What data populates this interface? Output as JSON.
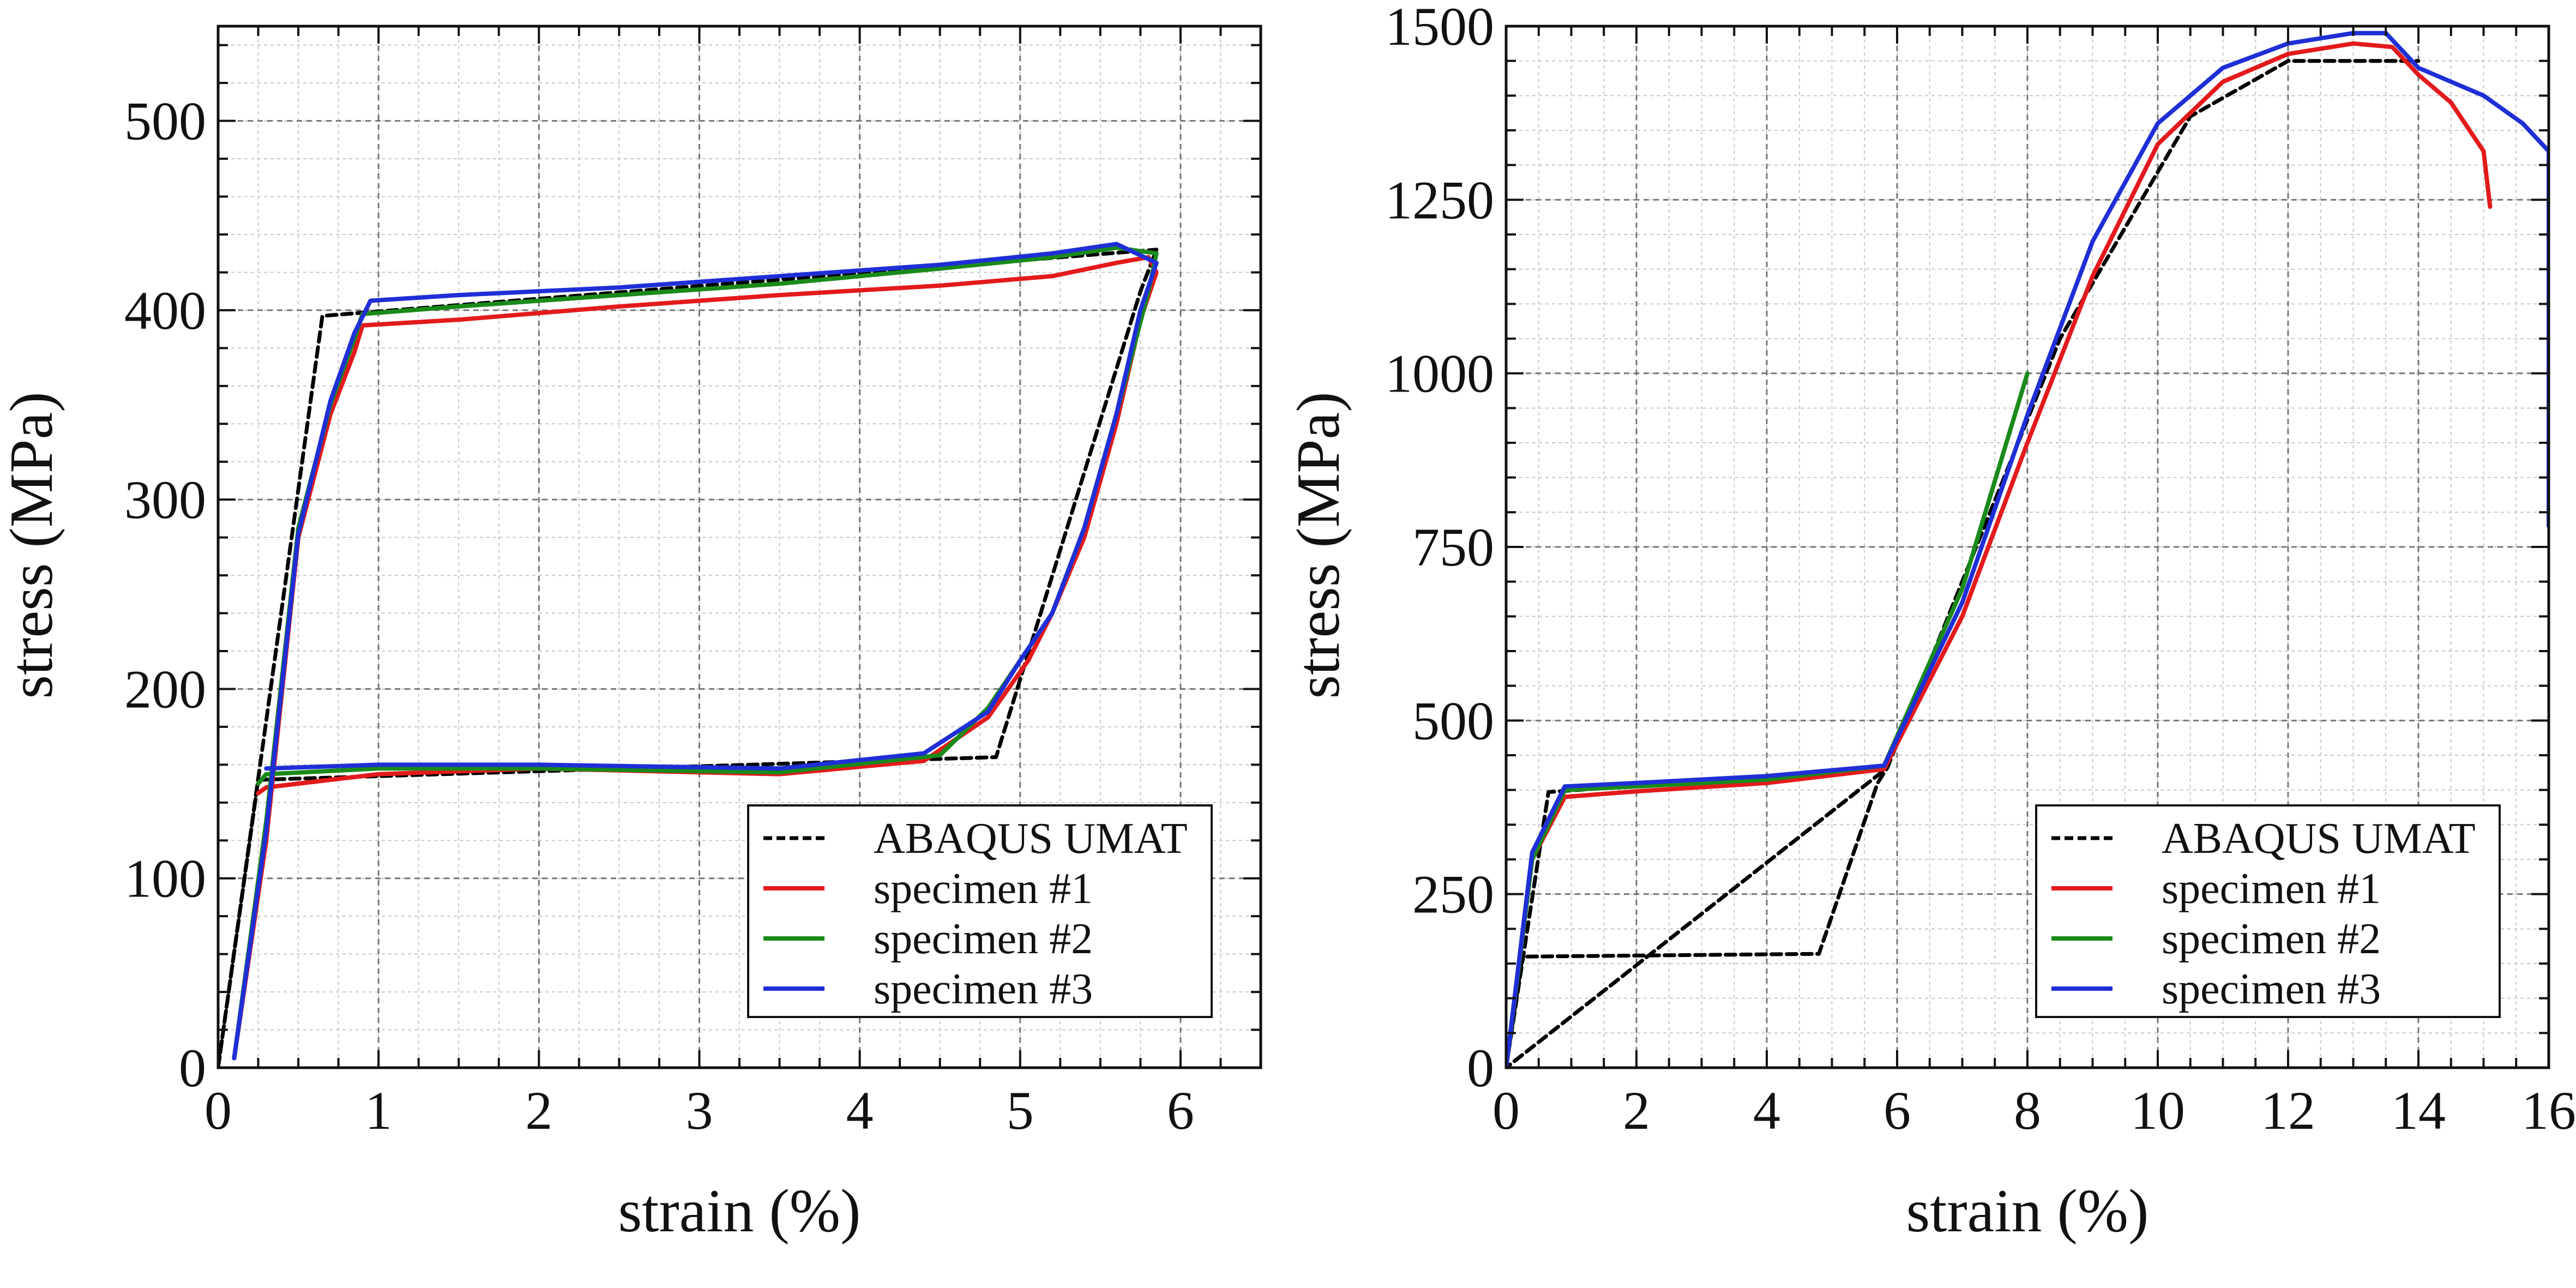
{
  "chart_data": [
    {
      "type": "line",
      "xlabel": "strain (%)",
      "ylabel": "stress (MPa)",
      "xlim": [
        0,
        6.5
      ],
      "ylim": [
        0,
        550
      ],
      "xticks": [
        0,
        1,
        2,
        3,
        4,
        5,
        6
      ],
      "yticks": [
        0,
        100,
        200,
        300,
        400,
        500
      ],
      "grid": true,
      "legend_position": "bottom-right",
      "series": [
        {
          "name": "ABAQUS UMAT",
          "color": "#000000",
          "style": "dashed",
          "points": [
            [
              0,
              0
            ],
            [
              0.65,
              397
            ],
            [
              5.85,
              432
            ],
            [
              5.75,
              410
            ],
            [
              4.85,
              164
            ],
            [
              0.25,
              152
            ],
            [
              0,
              0
            ]
          ]
        },
        {
          "name": "specimen #1",
          "color": "#e31a1c",
          "style": "solid",
          "points": [
            [
              0.1,
              5
            ],
            [
              0.3,
              120
            ],
            [
              0.5,
              280
            ],
            [
              0.7,
              345
            ],
            [
              0.85,
              378
            ],
            [
              0.9,
              392
            ],
            [
              1.5,
              395
            ],
            [
              2.5,
              402
            ],
            [
              3.5,
              408
            ],
            [
              4.5,
              413
            ],
            [
              5.2,
              418
            ],
            [
              5.6,
              425
            ],
            [
              5.8,
              428
            ],
            [
              5.85,
              420
            ],
            [
              5.75,
              395
            ],
            [
              5.6,
              340
            ],
            [
              5.4,
              280
            ],
            [
              5.2,
              240
            ],
            [
              5.05,
              215
            ],
            [
              4.8,
              185
            ],
            [
              4.4,
              162
            ],
            [
              3.5,
              155
            ],
            [
              2.0,
              158
            ],
            [
              1.0,
              155
            ],
            [
              0.3,
              148
            ],
            [
              0.25,
              145
            ]
          ]
        },
        {
          "name": "specimen #2",
          "color": "#1a8a1a",
          "style": "solid",
          "points": [
            [
              0.1,
              5
            ],
            [
              0.3,
              130
            ],
            [
              0.5,
              285
            ],
            [
              0.7,
              350
            ],
            [
              0.85,
              385
            ],
            [
              0.9,
              398
            ],
            [
              1.5,
              402
            ],
            [
              2.5,
              408
            ],
            [
              3.5,
              414
            ],
            [
              4.5,
              422
            ],
            [
              5.2,
              428
            ],
            [
              5.6,
              433
            ],
            [
              5.85,
              430
            ],
            [
              5.8,
              410
            ],
            [
              5.6,
              345
            ],
            [
              5.4,
              285
            ],
            [
              5.2,
              240
            ],
            [
              5.0,
              215
            ],
            [
              4.8,
              190
            ],
            [
              4.5,
              165
            ],
            [
              3.5,
              156
            ],
            [
              2.0,
              158
            ],
            [
              1.0,
              158
            ],
            [
              0.3,
              155
            ],
            [
              0.25,
              150
            ]
          ]
        },
        {
          "name": "specimen #3",
          "color": "#1f2fd6",
          "style": "solid",
          "points": [
            [
              0.1,
              5
            ],
            [
              0.3,
              125
            ],
            [
              0.5,
              282
            ],
            [
              0.7,
              352
            ],
            [
              0.85,
              388
            ],
            [
              0.95,
              405
            ],
            [
              1.5,
              408
            ],
            [
              2.5,
              412
            ],
            [
              3.5,
              418
            ],
            [
              4.5,
              424
            ],
            [
              5.2,
              430
            ],
            [
              5.6,
              435
            ],
            [
              5.85,
              425
            ],
            [
              5.75,
              400
            ],
            [
              5.6,
              345
            ],
            [
              5.4,
              285
            ],
            [
              5.2,
              240
            ],
            [
              5.0,
              215
            ],
            [
              4.8,
              188
            ],
            [
              4.4,
              166
            ],
            [
              3.5,
              158
            ],
            [
              2.0,
              160
            ],
            [
              1.0,
              160
            ],
            [
              0.3,
              158
            ]
          ]
        }
      ]
    },
    {
      "type": "line",
      "xlabel": "strain (%)",
      "ylabel": "stress (MPa)",
      "xlim": [
        0,
        16
      ],
      "ylim": [
        0,
        1500
      ],
      "xticks": [
        0,
        2,
        4,
        6,
        8,
        10,
        12,
        14,
        16
      ],
      "yticks": [
        0,
        250,
        500,
        750,
        1000,
        1250,
        1500
      ],
      "grid": true,
      "legend_position": "bottom-right",
      "series": [
        {
          "name": "ABAQUS UMAT",
          "color": "#000000",
          "style": "dashed",
          "points": [
            [
              0,
              0
            ],
            [
              0.65,
              397
            ],
            [
              5.85,
              432
            ],
            [
              5.7,
              410
            ],
            [
              4.8,
              164
            ],
            [
              0.25,
              160
            ],
            [
              0,
              0
            ],
            [
              5.85,
              432
            ],
            [
              8.5,
              1050
            ],
            [
              10.5,
              1370
            ],
            [
              12,
              1450
            ],
            [
              14,
              1450
            ]
          ]
        },
        {
          "name": "specimen #1",
          "color": "#e31a1c",
          "style": "solid",
          "points": [
            [
              0,
              0
            ],
            [
              0.4,
              300
            ],
            [
              0.9,
              390
            ],
            [
              2,
              398
            ],
            [
              4,
              410
            ],
            [
              5.8,
              430
            ],
            [
              7,
              650
            ],
            [
              8,
              900
            ],
            [
              9,
              1140
            ],
            [
              10,
              1330
            ],
            [
              11,
              1420
            ],
            [
              12,
              1460
            ],
            [
              13,
              1475
            ],
            [
              13.6,
              1470
            ],
            [
              14,
              1430
            ],
            [
              14.5,
              1390
            ],
            [
              15,
              1320
            ],
            [
              15.1,
              1240
            ]
          ]
        },
        {
          "name": "specimen #2",
          "color": "#1a8a1a",
          "style": "solid",
          "points": [
            [
              0,
              0
            ],
            [
              0.4,
              300
            ],
            [
              0.9,
              400
            ],
            [
              2,
              405
            ],
            [
              4,
              415
            ],
            [
              5.8,
              435
            ],
            [
              7,
              690
            ],
            [
              8,
              1000
            ]
          ]
        },
        {
          "name": "specimen #3",
          "color": "#1f2fd6",
          "style": "solid",
          "points": [
            [
              0,
              0
            ],
            [
              0.4,
              310
            ],
            [
              0.9,
              405
            ],
            [
              2,
              410
            ],
            [
              4,
              420
            ],
            [
              5.8,
              435
            ],
            [
              7,
              670
            ],
            [
              8,
              940
            ],
            [
              9,
              1190
            ],
            [
              10,
              1360
            ],
            [
              11,
              1440
            ],
            [
              12,
              1475
            ],
            [
              13,
              1490
            ],
            [
              13.5,
              1490
            ],
            [
              14,
              1440
            ],
            [
              15,
              1400
            ],
            [
              15.6,
              1360
            ],
            [
              16,
              1320
            ],
            [
              16,
              780
            ]
          ]
        }
      ]
    }
  ]
}
